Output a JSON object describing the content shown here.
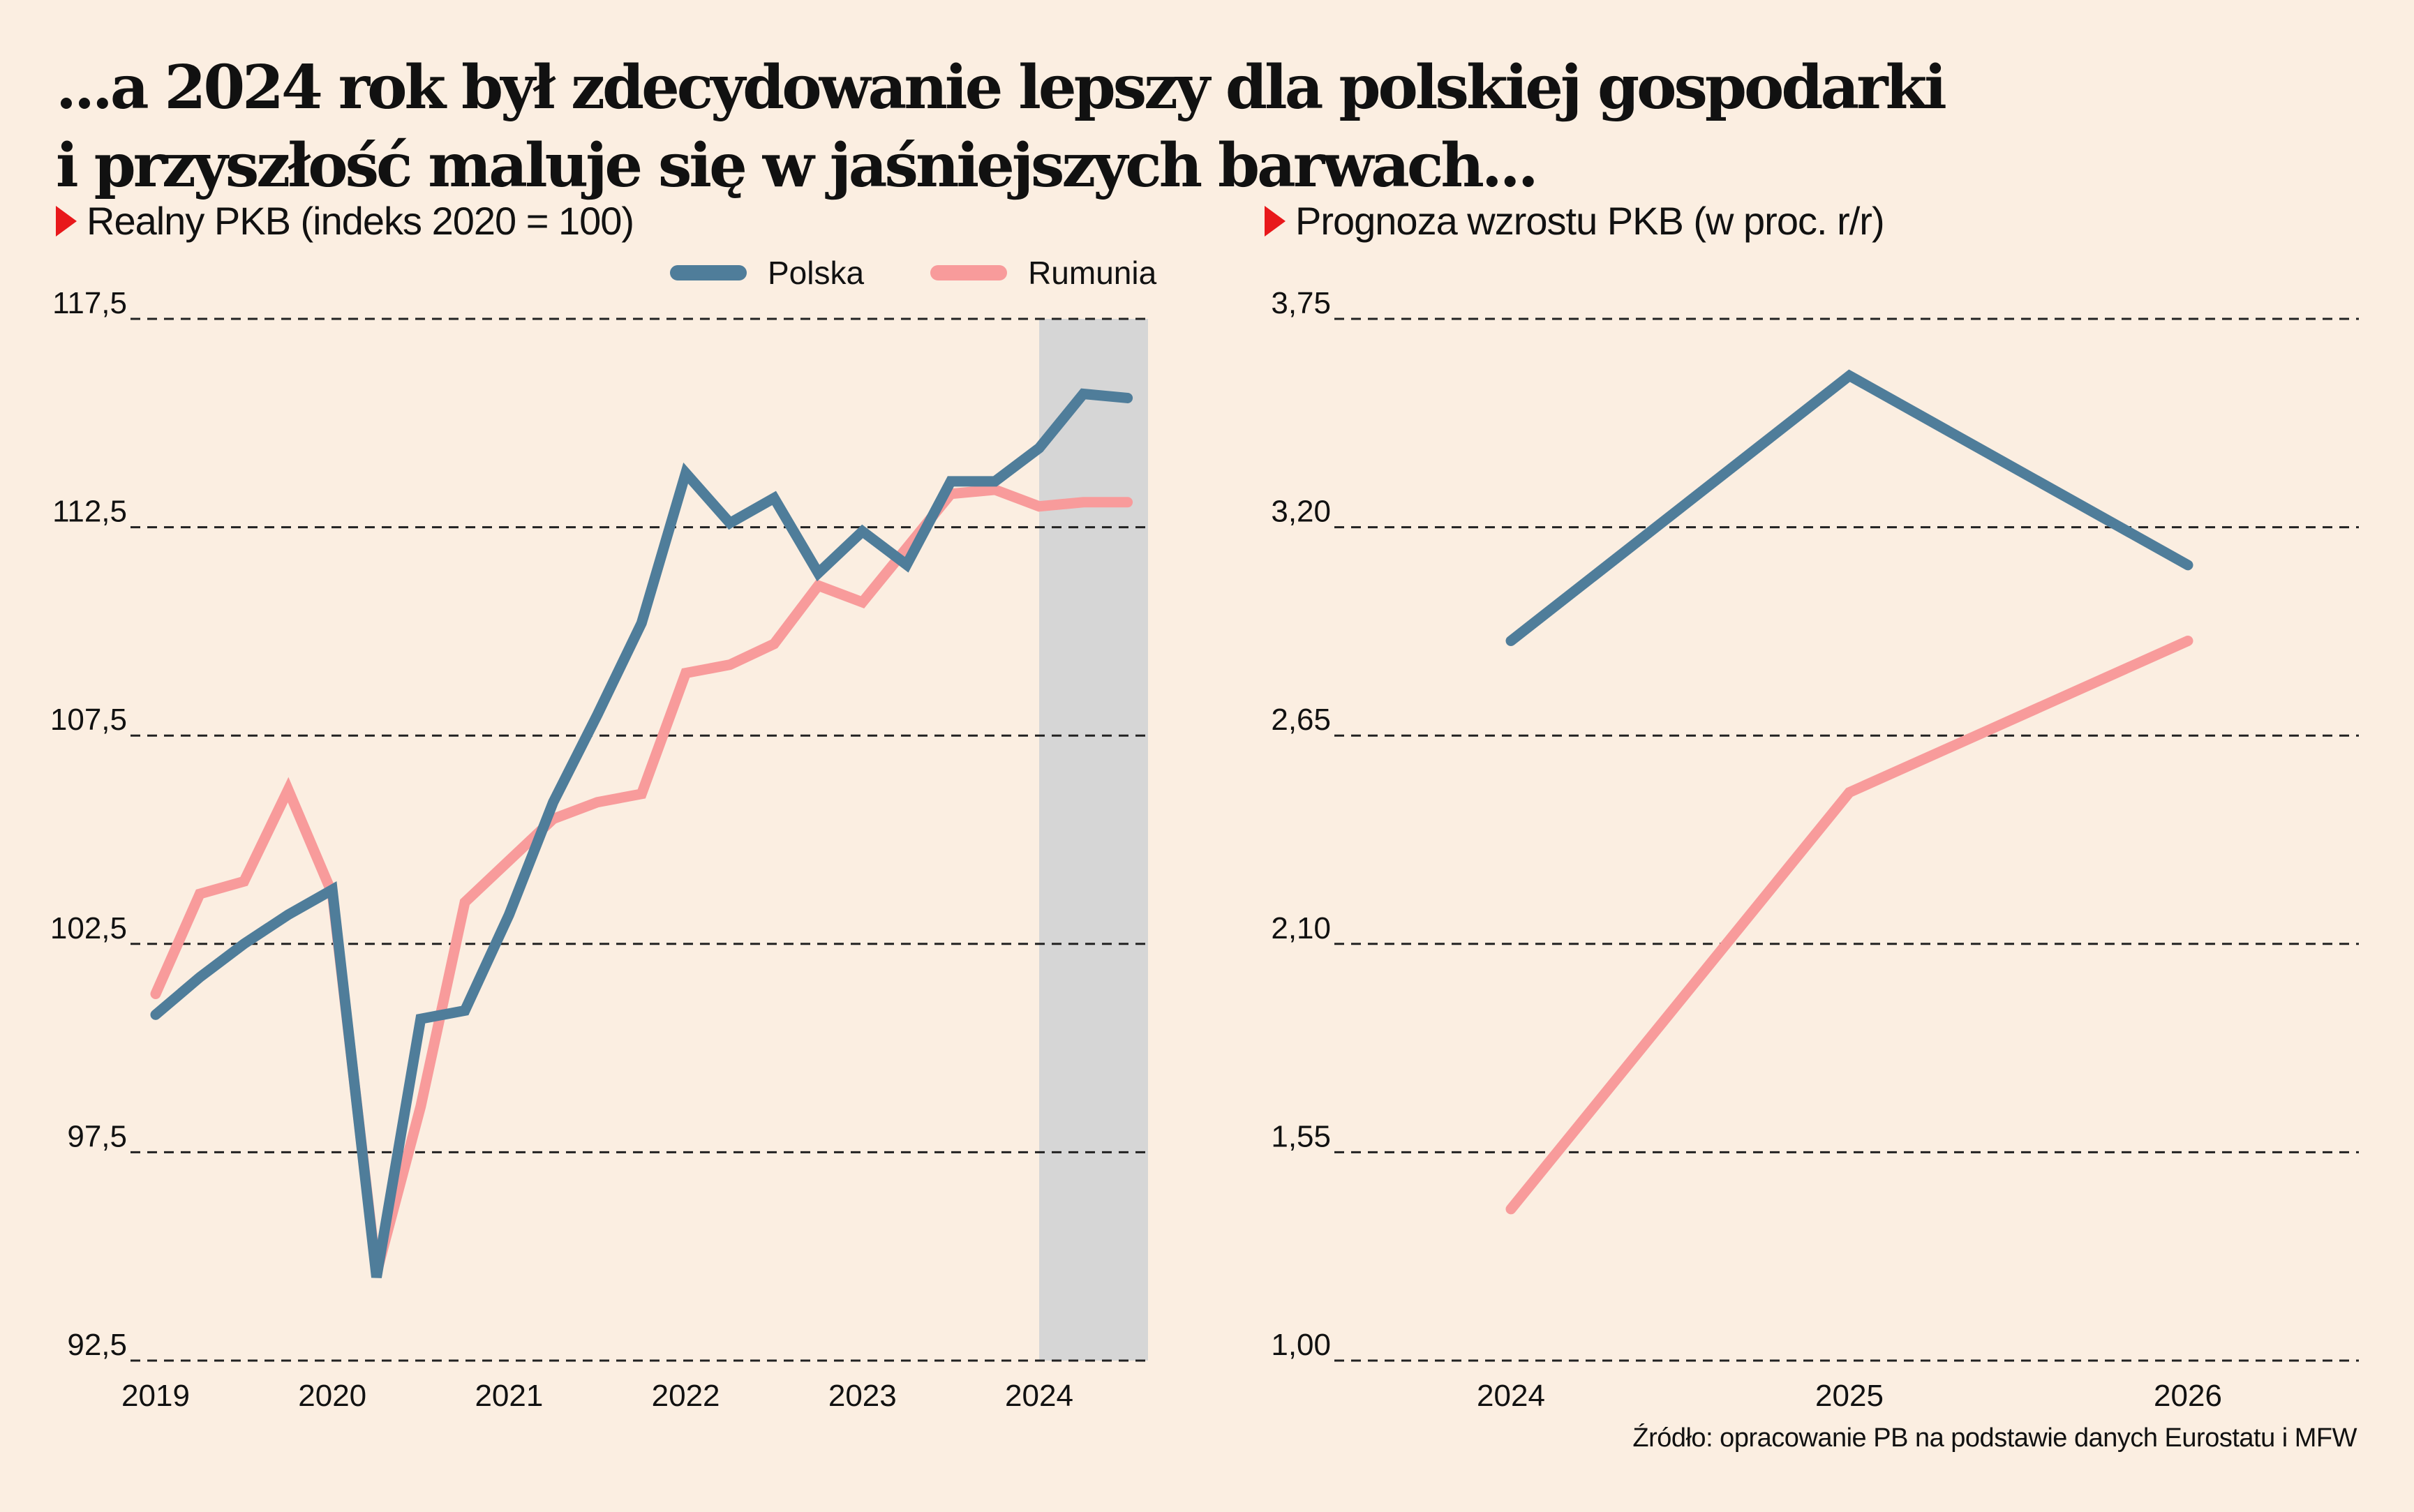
{
  "headline": {
    "line1": "...a 2024 rok był zdecydowanie lepszy dla polskiej gospodarki",
    "line2": "i przyszłość maluje się w jaśniejszych barwach..."
  },
  "colors": {
    "background": "#fbeee1",
    "polska": "#4f7d9a",
    "rumunia": "#f89b9b",
    "accent_triangle": "#e8181b",
    "shade": "#d6d6d6"
  },
  "legend": [
    {
      "name": "Polska",
      "color": "#4f7d9a"
    },
    {
      "name": "Rumunia",
      "color": "#f89b9b"
    }
  ],
  "source": "Źródło: opracowanie PB na podstawie danych Eurostatu i MFW",
  "chart_data": [
    {
      "type": "line",
      "title": "Realny PKB (indeks 2020 = 100)",
      "xlabel": "",
      "ylabel": "",
      "ylim": [
        92.5,
        117.5
      ],
      "yticks": [
        "117,5",
        "112,5",
        "107,5",
        "102,5",
        "97,5",
        "92,5"
      ],
      "ytick_values": [
        117.5,
        112.5,
        107.5,
        102.5,
        97.5,
        92.5
      ],
      "xticks": [
        "2019",
        "2020",
        "2021",
        "2022",
        "2023",
        "2024"
      ],
      "x": [
        "2019Q1",
        "2019Q2",
        "2019Q3",
        "2019Q4",
        "2020Q1",
        "2020Q2",
        "2020Q3",
        "2020Q4",
        "2021Q1",
        "2021Q2",
        "2021Q3",
        "2021Q4",
        "2022Q1",
        "2022Q2",
        "2022Q3",
        "2022Q4",
        "2023Q1",
        "2023Q2",
        "2023Q3",
        "2023Q4",
        "2024Q1",
        "2024Q2",
        "2024Q3"
      ],
      "highlight_period": [
        "2024Q1",
        "2024Q3"
      ],
      "grid": "horizontal dashed",
      "legend_position": "top-right",
      "series": [
        {
          "name": "Polska",
          "values": [
            100.8,
            101.7,
            102.5,
            103.2,
            103.8,
            94.5,
            100.7,
            100.9,
            103.2,
            105.9,
            108.0,
            110.2,
            113.8,
            112.6,
            113.2,
            111.4,
            112.4,
            111.6,
            113.6,
            113.6,
            114.4,
            115.7,
            115.6
          ]
        },
        {
          "name": "Rumunia",
          "values": [
            101.3,
            103.7,
            104.0,
            106.2,
            103.7,
            94.6,
            98.6,
            103.5,
            104.5,
            105.5,
            105.9,
            106.1,
            109.0,
            109.2,
            109.7,
            111.1,
            110.7,
            112.0,
            113.3,
            113.4,
            113.0,
            113.1,
            113.1
          ]
        }
      ]
    },
    {
      "type": "line",
      "title": "Prognoza wzrostu PKB (w proc. r/r)",
      "xlabel": "",
      "ylabel": "",
      "ylim": [
        1.0,
        3.75
      ],
      "yticks": [
        "3,75",
        "3,20",
        "2,65",
        "2,10",
        "1,55",
        "1,00"
      ],
      "ytick_values": [
        3.75,
        3.2,
        2.65,
        2.1,
        1.55,
        1.0
      ],
      "categories": [
        "2024",
        "2025",
        "2026"
      ],
      "grid": "horizontal dashed",
      "series": [
        {
          "name": "Polska",
          "values": [
            2.9,
            3.6,
            3.1
          ]
        },
        {
          "name": "Rumunia",
          "values": [
            1.4,
            2.5,
            2.9
          ]
        }
      ]
    }
  ]
}
